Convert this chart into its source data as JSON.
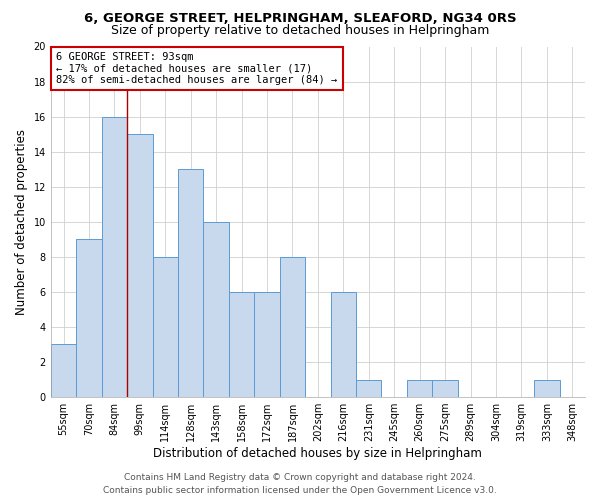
{
  "title_line1": "6, GEORGE STREET, HELPRINGHAM, SLEAFORD, NG34 0RS",
  "title_line2": "Size of property relative to detached houses in Helpringham",
  "xlabel": "Distribution of detached houses by size in Helpringham",
  "ylabel": "Number of detached properties",
  "categories": [
    "55sqm",
    "70sqm",
    "84sqm",
    "99sqm",
    "114sqm",
    "128sqm",
    "143sqm",
    "158sqm",
    "172sqm",
    "187sqm",
    "202sqm",
    "216sqm",
    "231sqm",
    "245sqm",
    "260sqm",
    "275sqm",
    "289sqm",
    "304sqm",
    "319sqm",
    "333sqm",
    "348sqm"
  ],
  "values": [
    3,
    9,
    16,
    15,
    8,
    13,
    10,
    6,
    6,
    8,
    0,
    6,
    1,
    0,
    1,
    1,
    0,
    0,
    0,
    1,
    0
  ],
  "bar_color": "#c8d9ed",
  "bar_edge_color": "#5b9bd5",
  "grid_color": "#d0d0d0",
  "annotation_line1": "6 GEORGE STREET: 93sqm",
  "annotation_line2": "← 17% of detached houses are smaller (17)",
  "annotation_line3": "82% of semi-detached houses are larger (84) →",
  "annotation_box_color": "#ffffff",
  "annotation_box_edge": "#cc0000",
  "red_line_x": 2.5,
  "ylim": [
    0,
    20
  ],
  "yticks": [
    0,
    2,
    4,
    6,
    8,
    10,
    12,
    14,
    16,
    18,
    20
  ],
  "footer_line1": "Contains HM Land Registry data © Crown copyright and database right 2024.",
  "footer_line2": "Contains public sector information licensed under the Open Government Licence v3.0.",
  "title_fontsize": 9.5,
  "subtitle_fontsize": 9,
  "axis_label_fontsize": 8.5,
  "tick_fontsize": 7,
  "annotation_fontsize": 7.5,
  "footer_fontsize": 6.5,
  "ylabel_fontsize": 8.5
}
